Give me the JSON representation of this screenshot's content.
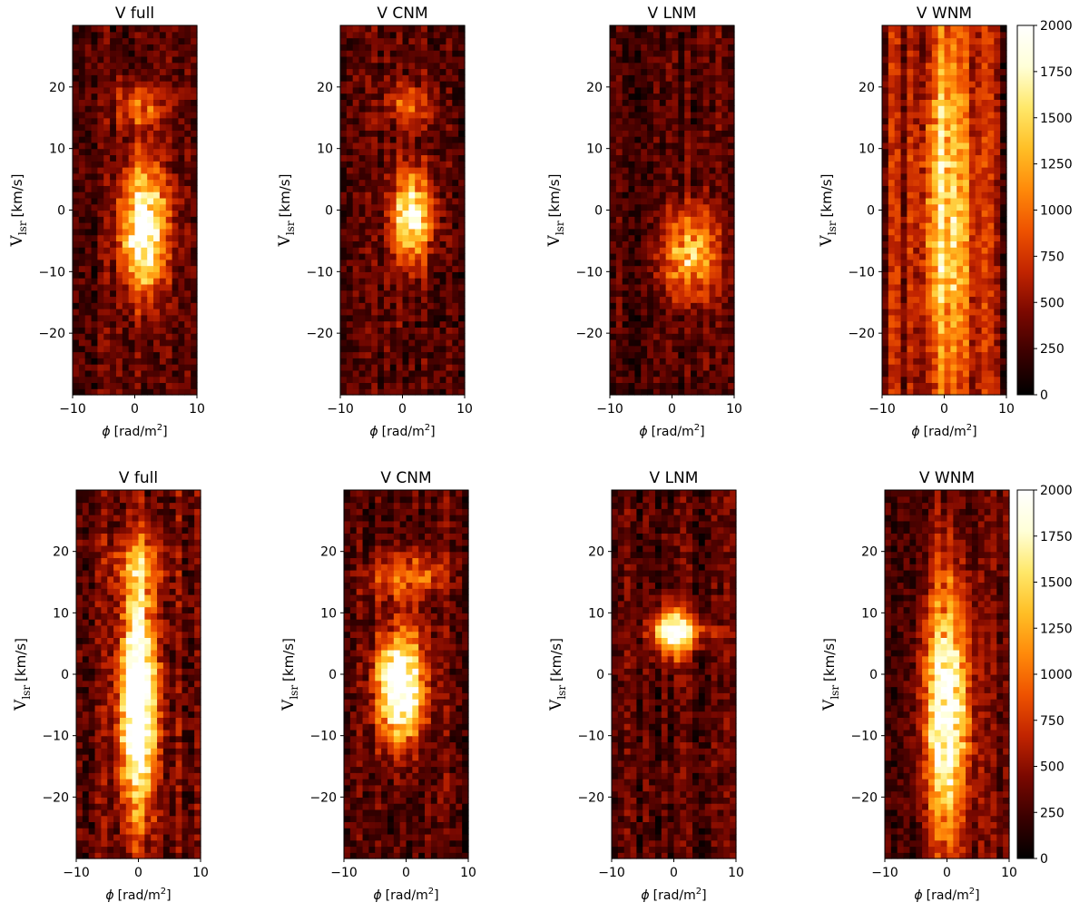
{
  "figure": {
    "x_label_symbol": "ϕ",
    "x_label_unit": "[rad/m",
    "x_label_sup": "2",
    "x_label_close": "]",
    "y_label_main": "V",
    "y_label_sub": "lsr",
    "y_label_unit": "[km/s]"
  },
  "colors": {
    "colormap": "afmhot",
    "colormap_stops": [
      "#000000",
      "#3a0000",
      "#7a0800",
      "#c12400",
      "#ee5200",
      "#ff8a0a",
      "#ffbf26",
      "#ffe86a",
      "#ffffd8",
      "#ffffff"
    ],
    "axis": "#000000",
    "background": "#ffffff"
  },
  "chart_data": [
    {
      "type": "heatmap",
      "row": "top",
      "title": "V full",
      "xlabel": "ϕ [rad/m2]",
      "ylabel": "Vlsr [km/s]",
      "xlim": [
        -10,
        10
      ],
      "ylim": [
        -30,
        30
      ],
      "xticks": [
        -10,
        0,
        10
      ],
      "yticks": [
        -20,
        -10,
        0,
        10,
        20
      ],
      "colorbar": false,
      "vmin": 0,
      "vmax": 2000,
      "features": [
        {
          "phi": 1.5,
          "v": -3,
          "sphi": 2.5,
          "sv": 7,
          "amp": 1900
        },
        {
          "phi": 1,
          "v": 17,
          "sphi": 3,
          "sv": 2.5,
          "amp": 700
        }
      ],
      "stripe_amp": 250,
      "noise": 400,
      "seed": 11
    },
    {
      "type": "heatmap",
      "row": "top",
      "title": "V CNM",
      "xlabel": "ϕ [rad/m2]",
      "ylabel": "Vlsr [km/s]",
      "xlim": [
        -10,
        10
      ],
      "ylim": [
        -30,
        30
      ],
      "xticks": [
        -10,
        0,
        10
      ],
      "yticks": [
        -20,
        -10,
        0,
        10,
        20
      ],
      "colorbar": false,
      "vmin": 0,
      "vmax": 2000,
      "features": [
        {
          "phi": 1.5,
          "v": -1,
          "sphi": 2.2,
          "sv": 5,
          "amp": 1650
        },
        {
          "phi": 1.5,
          "v": 17,
          "sphi": 2.5,
          "sv": 2.5,
          "amp": 650
        }
      ],
      "stripe_amp": 250,
      "noise": 400,
      "seed": 23
    },
    {
      "type": "heatmap",
      "row": "top",
      "title": "V LNM",
      "xlabel": "ϕ [rad/m2]",
      "ylabel": "Vlsr [km/s]",
      "xlim": [
        -10,
        10
      ],
      "ylim": [
        -30,
        30
      ],
      "xticks": [
        -10,
        0,
        10
      ],
      "yticks": [
        -20,
        -10,
        0,
        10,
        20
      ],
      "colorbar": false,
      "vmin": 0,
      "vmax": 2000,
      "features": [
        {
          "phi": 3,
          "v": -7,
          "sphi": 3,
          "sv": 5,
          "amp": 1150
        }
      ],
      "stripe_amp": 250,
      "noise": 380,
      "seed": 37
    },
    {
      "type": "heatmap",
      "row": "top",
      "title": "V WNM",
      "xlabel": "ϕ [rad/m2]",
      "ylabel": "Vlsr [km/s]",
      "xlim": [
        -10,
        10
      ],
      "ylim": [
        -30,
        30
      ],
      "xticks": [
        -10,
        0,
        10
      ],
      "yticks": [
        -20,
        -10,
        0,
        10,
        20
      ],
      "colorbar": true,
      "colorbar_ticks": [
        0,
        250,
        500,
        750,
        1000,
        1250,
        1500,
        1750,
        2000
      ],
      "vmin": 0,
      "vmax": 2000,
      "features": [
        {
          "phi": 0,
          "v": 0,
          "sphi": 3,
          "sv": 22,
          "amp": 1050
        }
      ],
      "stripe_amp": 550,
      "noise": 350,
      "seed": 41
    },
    {
      "type": "heatmap",
      "row": "bottom",
      "title": "V full",
      "xlabel": "ϕ [rad/m2]",
      "ylabel": "Vlsr [km/s]",
      "xlim": [
        -10,
        10
      ],
      "ylim": [
        -30,
        30
      ],
      "xticks": [
        -10,
        0,
        10
      ],
      "yticks": [
        -20,
        -10,
        0,
        10,
        20
      ],
      "colorbar": false,
      "vmin": 0,
      "vmax": 2000,
      "features": [
        {
          "phi": 0,
          "v": -4,
          "sphi": 2,
          "sv": 12,
          "amp": 2400
        },
        {
          "phi": 0,
          "v": 18,
          "sphi": 3,
          "sv": 3,
          "amp": 700
        }
      ],
      "stripe_amp": 350,
      "noise": 450,
      "seed": 53
    },
    {
      "type": "heatmap",
      "row": "bottom",
      "title": "V CNM",
      "xlabel": "ϕ [rad/m2]",
      "ylabel": "Vlsr [km/s]",
      "xlim": [
        -10,
        10
      ],
      "ylim": [
        -30,
        30
      ],
      "xticks": [
        -10,
        0,
        10
      ],
      "yticks": [
        -20,
        -10,
        0,
        10,
        20
      ],
      "colorbar": false,
      "vmin": 0,
      "vmax": 2000,
      "features": [
        {
          "phi": -1,
          "v": -2,
          "sphi": 2.5,
          "sv": 6,
          "amp": 2300
        },
        {
          "phi": 0,
          "v": 16,
          "sphi": 4,
          "sv": 2.5,
          "amp": 750
        }
      ],
      "stripe_amp": 250,
      "noise": 400,
      "seed": 67
    },
    {
      "type": "heatmap",
      "row": "bottom",
      "title": "V LNM",
      "xlabel": "ϕ [rad/m2]",
      "ylabel": "Vlsr [km/s]",
      "xlim": [
        -10,
        10
      ],
      "ylim": [
        -30,
        30
      ],
      "xticks": [
        -10,
        0,
        10
      ],
      "yticks": [
        -20,
        -10,
        0,
        10,
        20
      ],
      "colorbar": false,
      "vmin": 0,
      "vmax": 2000,
      "features": [
        {
          "phi": 0,
          "v": 7,
          "sphi": 2,
          "sv": 3,
          "amp": 1600
        },
        {
          "phi": 2,
          "v": 7,
          "sphi": 4,
          "sv": 1.5,
          "amp": 500
        }
      ],
      "stripe_amp": 250,
      "noise": 380,
      "seed": 79
    },
    {
      "type": "heatmap",
      "row": "bottom",
      "title": "V WNM",
      "xlabel": "ϕ [rad/m2]",
      "ylabel": "Vlsr [km/s]",
      "xlim": [
        -10,
        10
      ],
      "ylim": [
        -30,
        30
      ],
      "xticks": [
        -10,
        0,
        10
      ],
      "yticks": [
        -20,
        -10,
        0,
        10,
        20
      ],
      "colorbar": true,
      "colorbar_ticks": [
        0,
        250,
        500,
        750,
        1000,
        1250,
        1500,
        1750,
        2000
      ],
      "vmin": 0,
      "vmax": 2000,
      "features": [
        {
          "phi": 0,
          "v": -6,
          "sphi": 2.5,
          "sv": 14,
          "amp": 1800
        }
      ],
      "stripe_amp": 350,
      "noise": 350,
      "seed": 97
    }
  ]
}
